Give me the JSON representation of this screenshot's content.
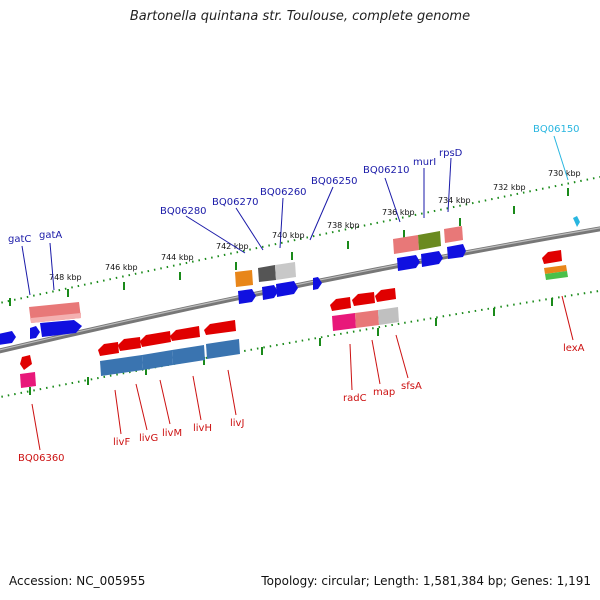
{
  "title": "Bartonella quintana str. Toulouse, complete genome",
  "footer": {
    "accession": "Accession: NC_005955",
    "topology": "Topology: circular; Length: 1,581,384 bp; Genes: 1,191"
  },
  "scale_labels": [
    "730 kbp",
    "732 kbp",
    "734 kbp",
    "736 kbp",
    "738 kbp",
    "740 kbp",
    "742 kbp",
    "744 kbp",
    "746 kbp",
    "748 kbp"
  ],
  "upper_genes": [
    "gatC",
    "gatA",
    "BQ06280",
    "BQ06270",
    "BQ06260",
    "BQ06250",
    "BQ06210",
    "murI",
    "rpsD",
    "BQ06150"
  ],
  "lower_genes": [
    "BQ06360",
    "livF",
    "livG",
    "livM",
    "livH",
    "livJ",
    "radC",
    "map",
    "sfsA",
    "lexA"
  ],
  "colors": {
    "upper_label": "#1a1aa8",
    "highlight_label": "#29b6e0",
    "lower_label": "#cc1111",
    "backbone": "#777777",
    "scale": "#1a8a1a"
  }
}
